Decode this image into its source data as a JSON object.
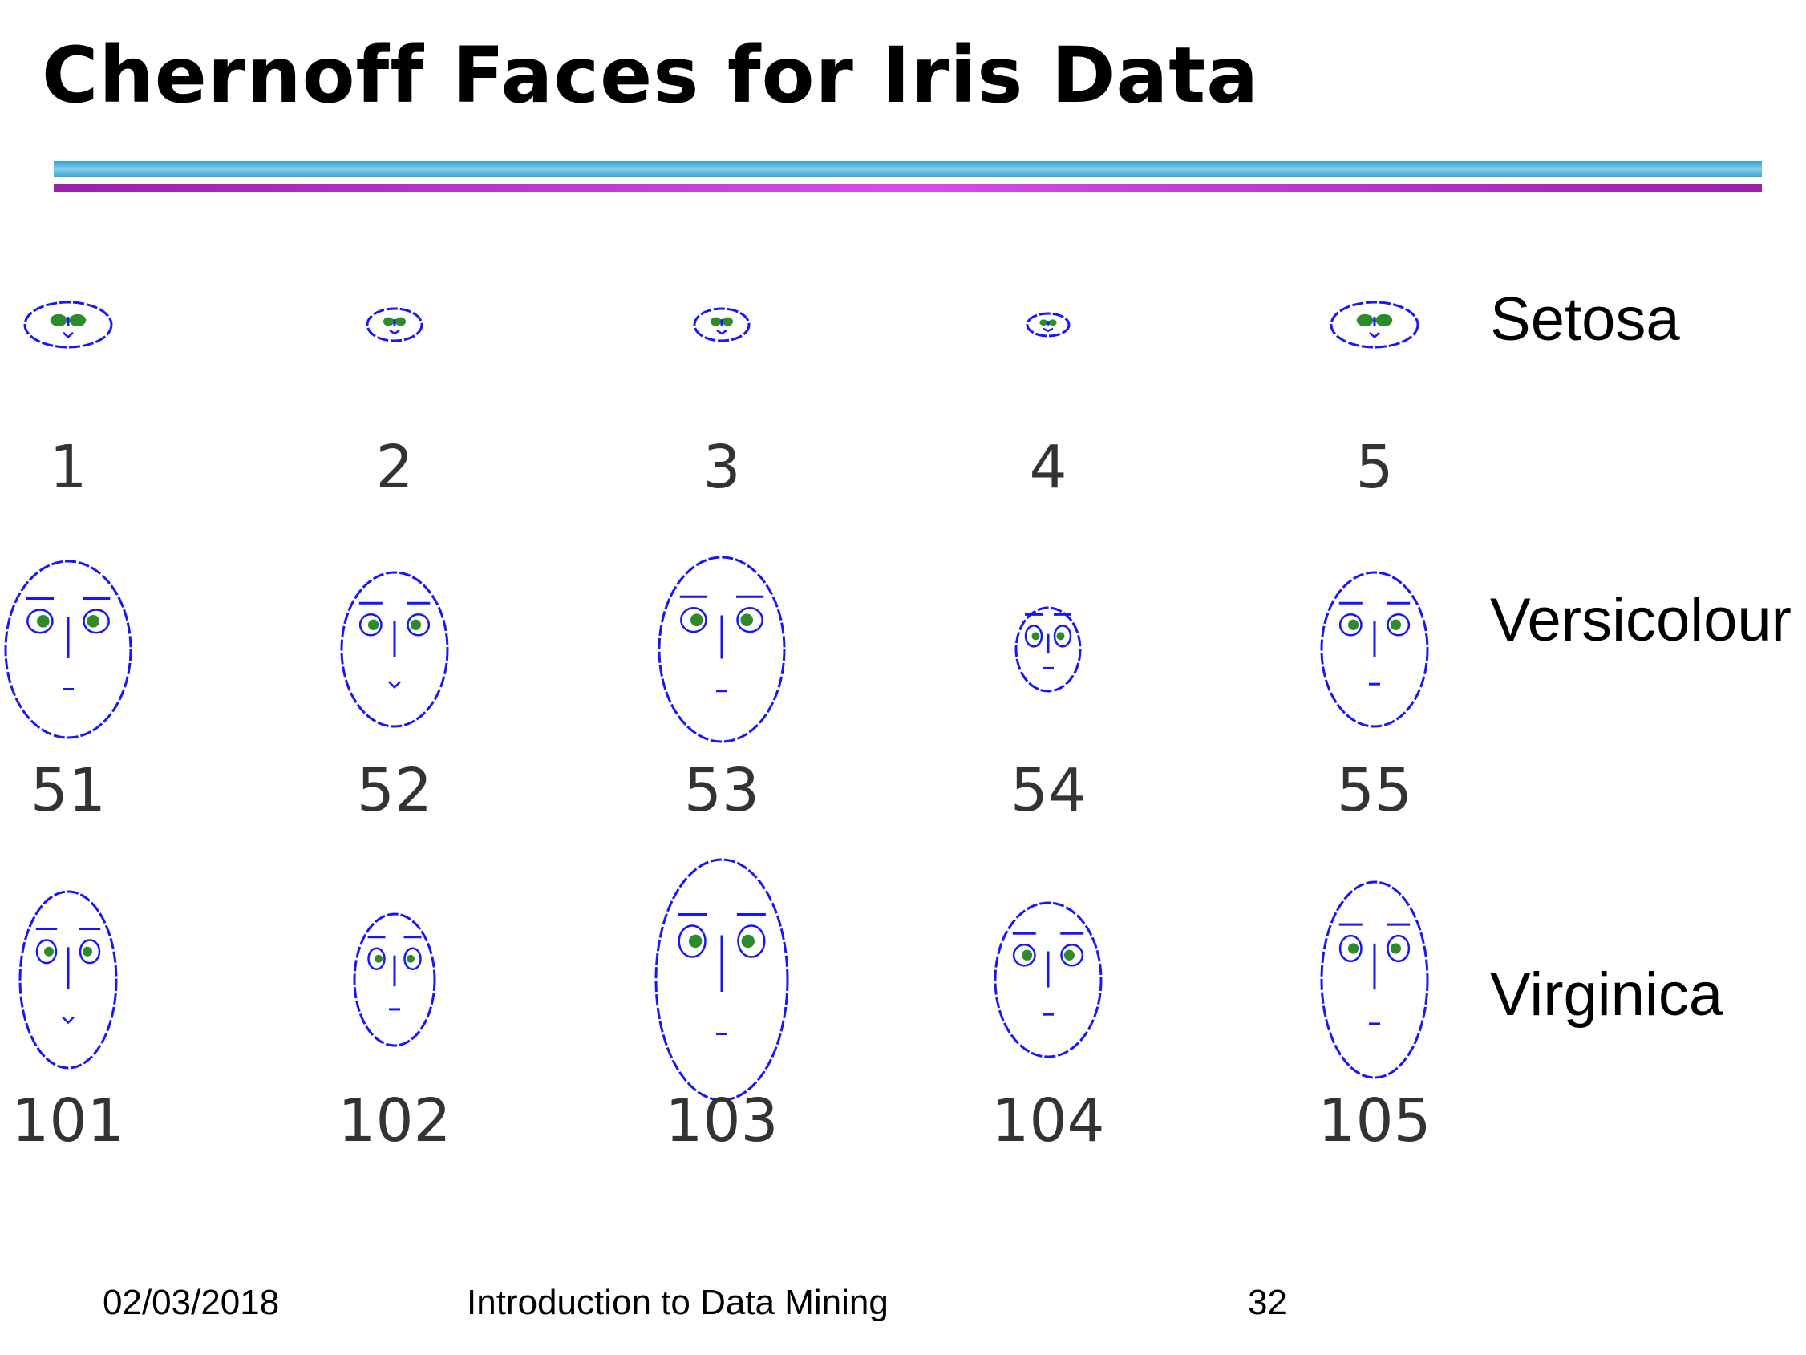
{
  "slide": {
    "title": "Chernoff Faces for Iris Data",
    "footer": {
      "date": "02/03/2018",
      "course": "Introduction to Data Mining",
      "page": "32"
    }
  },
  "colors": {
    "face_outline": "#1515ff",
    "eye_fill": "#2d8a2d",
    "rule_blue": "#4aa8d8",
    "rule_pink": "#c53bd6"
  },
  "rows": [
    {
      "species": "Setosa",
      "faces": [
        {
          "id": "1",
          "shape": "flat-small"
        },
        {
          "id": "2",
          "shape": "flat-tiny"
        },
        {
          "id": "3",
          "shape": "flat-tiny"
        },
        {
          "id": "4",
          "shape": "flat-mini"
        },
        {
          "id": "5",
          "shape": "flat-small"
        }
      ]
    },
    {
      "species": "Versicolour",
      "faces": [
        {
          "id": "51",
          "shape": "wide"
        },
        {
          "id": "52",
          "shape": "medium"
        },
        {
          "id": "53",
          "shape": "tall"
        },
        {
          "id": "54",
          "shape": "small"
        },
        {
          "id": "55",
          "shape": "medium"
        }
      ]
    },
    {
      "species": "Virginica",
      "faces": [
        {
          "id": "101",
          "shape": "narrow"
        },
        {
          "id": "102",
          "shape": "small-medium"
        },
        {
          "id": "103",
          "shape": "large"
        },
        {
          "id": "104",
          "shape": "medium"
        },
        {
          "id": "105",
          "shape": "tall-narrow"
        }
      ]
    }
  ]
}
